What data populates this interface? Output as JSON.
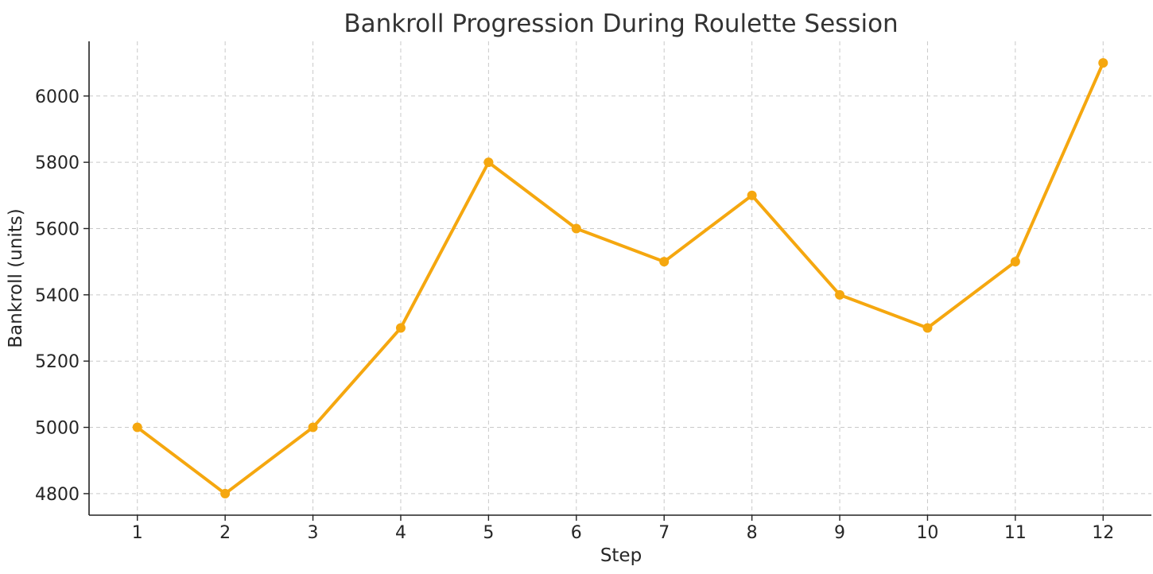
{
  "chart_data": {
    "type": "line",
    "title": "Bankroll Progression During Roulette Session",
    "xlabel": "Step",
    "ylabel": "Bankroll (units)",
    "x": [
      1,
      2,
      3,
      4,
      5,
      6,
      7,
      8,
      9,
      10,
      11,
      12
    ],
    "series": [
      {
        "values": [
          5000,
          4800,
          5000,
          5300,
          5800,
          5600,
          5500,
          5700,
          5400,
          5300,
          5500,
          6100
        ],
        "color": "#f5a70f"
      }
    ],
    "xticks": [
      1,
      2,
      3,
      4,
      5,
      6,
      7,
      8,
      9,
      10,
      11,
      12
    ],
    "yticks": [
      4800,
      5000,
      5200,
      5400,
      5600,
      5800,
      6000
    ],
    "xlim": [
      0.45,
      12.55
    ],
    "ylim": [
      4735,
      6165
    ],
    "grid": true,
    "marker": "circle"
  }
}
